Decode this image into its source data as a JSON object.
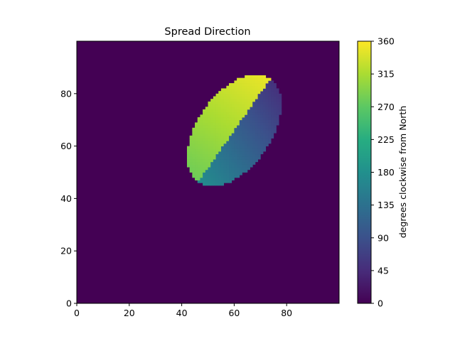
{
  "chart_data": {
    "type": "heatmap",
    "title": "Spread Direction",
    "xlabel": "",
    "ylabel": "",
    "grid_size": [
      100,
      100
    ],
    "xlim": [
      0,
      100
    ],
    "ylim": [
      0,
      100
    ],
    "origin": "lower",
    "grid": false,
    "x_ticks": [
      0,
      20,
      40,
      60,
      80
    ],
    "y_ticks": [
      0,
      20,
      40,
      60,
      80
    ],
    "colormap": "viridis",
    "background_value": 0,
    "region": {
      "shape": "tilted ellipse",
      "center": [
        60,
        66
      ],
      "semi_axes": [
        24,
        14
      ],
      "orientation_deg": 55,
      "upper_left_half_value_range": [
        280,
        350
      ],
      "lower_right_half_value_range": [
        40,
        175
      ]
    },
    "colorbar": {
      "label": "degrees clockwise from North",
      "range": [
        0,
        360
      ],
      "ticks": [
        0,
        45,
        90,
        135,
        180,
        225,
        270,
        315,
        360
      ],
      "placement": "right"
    },
    "colors": {
      "viridis_low": "#440154",
      "viridis_mid": "#21918c",
      "viridis_high": "#fde725"
    }
  }
}
